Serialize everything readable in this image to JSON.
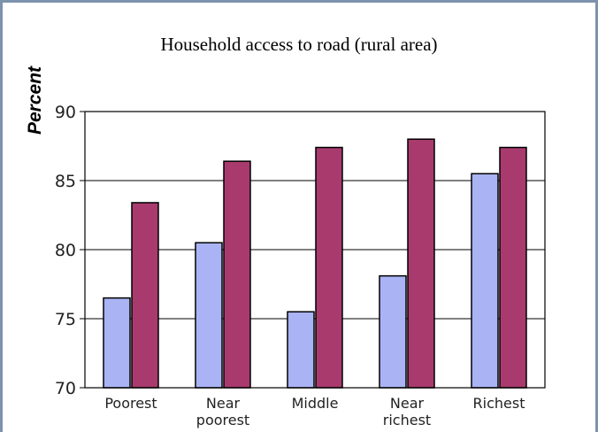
{
  "chart_data": {
    "type": "bar",
    "title": "Household access to road (rural area)",
    "xlabel": "",
    "ylabel": "Percent",
    "categories": [
      [
        "Poorest"
      ],
      [
        "Near",
        "poorest"
      ],
      [
        "Middle"
      ],
      [
        "Near",
        "richest"
      ],
      [
        "Richest"
      ]
    ],
    "series": [
      {
        "values": [
          76.5,
          80.5,
          75.5,
          78.1,
          85.5
        ],
        "color": "#aab4f4"
      },
      {
        "values": [
          83.4,
          86.4,
          87.4,
          88.0,
          87.4
        ],
        "color": "#a83a6e"
      }
    ],
    "ylim": [
      70,
      90
    ],
    "yticks": [
      70,
      75,
      80,
      85,
      90
    ],
    "grid": true,
    "legend": "none"
  },
  "style": {
    "frame_color": "#7d92ad",
    "grid_color": "#000000"
  }
}
